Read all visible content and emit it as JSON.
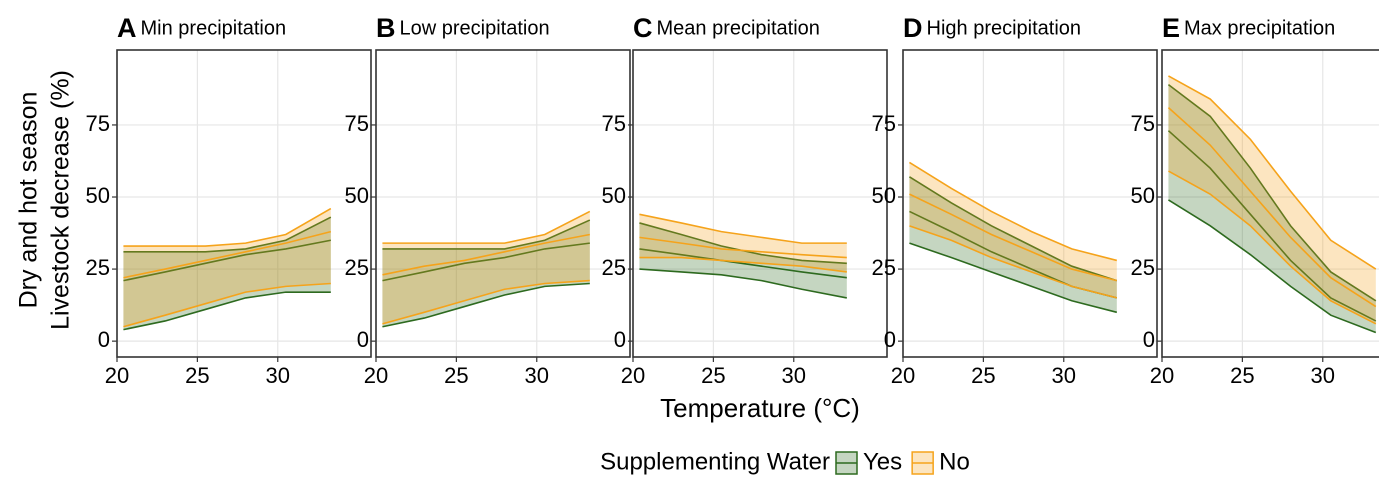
{
  "xlabel": "Temperature (°C)",
  "ylabel": [
    "Dry and hot season",
    "Livestock decrease (%)"
  ],
  "legend": {
    "title": "Supplementing Water",
    "series": [
      {
        "name": "Yes",
        "color": "#2d6a1f"
      },
      {
        "name": "No",
        "color": "#f5a31b"
      }
    ]
  },
  "chart_data": [
    {
      "type": "ribbon",
      "label": "A",
      "title": "Min precipitation",
      "x": [
        20.4,
        23,
        25.5,
        28,
        30.5,
        33.3
      ],
      "xlim": [
        20,
        35.8
      ],
      "xticks": [
        20,
        25,
        30
      ],
      "ylim": [
        -5.5,
        101
      ],
      "yticks": [
        0,
        25,
        50,
        75
      ],
      "grid": true,
      "bands": [
        {
          "lower": [
            4,
            7,
            11,
            15,
            17,
            17
          ],
          "mean": [
            21,
            24,
            27,
            30,
            32,
            35
          ],
          "upper": [
            31,
            31,
            31,
            32,
            35,
            43
          ]
        },
        {
          "lower": [
            5,
            9,
            13,
            17,
            19,
            20
          ],
          "mean": [
            22,
            25,
            28,
            31,
            34,
            38
          ],
          "upper": [
            33,
            33,
            33,
            34,
            37,
            46
          ]
        }
      ]
    },
    {
      "type": "ribbon",
      "label": "B",
      "title": "Low precipitation",
      "x": [
        20.4,
        23,
        25.5,
        28,
        30.5,
        33.3
      ],
      "xlim": [
        20,
        35.8
      ],
      "xticks": [
        20,
        25,
        30
      ],
      "ylim": [
        -5.5,
        101
      ],
      "yticks": [
        0,
        25,
        50,
        75
      ],
      "grid": true,
      "bands": [
        {
          "lower": [
            5,
            8,
            12,
            16,
            19,
            20
          ],
          "mean": [
            21,
            24,
            27,
            29,
            32,
            34
          ],
          "upper": [
            32,
            32,
            32,
            32,
            35,
            42
          ]
        },
        {
          "lower": [
            6,
            10,
            14,
            18,
            20,
            21
          ],
          "mean": [
            23,
            26,
            28,
            31,
            34,
            37
          ],
          "upper": [
            34,
            34,
            34,
            34,
            37,
            45
          ]
        }
      ]
    },
    {
      "type": "ribbon",
      "label": "C",
      "title": "Mean precipitation",
      "x": [
        20.4,
        23,
        25.5,
        28,
        30.5,
        33.3
      ],
      "xlim": [
        20,
        35.8
      ],
      "xticks": [
        20,
        25,
        30
      ],
      "ylim": [
        -5.5,
        101
      ],
      "yticks": [
        0,
        25,
        50,
        75
      ],
      "grid": true,
      "bands": [
        {
          "lower": [
            25,
            24,
            23,
            21,
            18,
            15
          ],
          "mean": [
            32,
            30,
            28,
            26,
            24,
            22
          ],
          "upper": [
            41,
            37,
            33,
            30,
            28,
            27
          ]
        },
        {
          "lower": [
            29,
            29,
            28,
            27,
            26,
            24
          ],
          "mean": [
            36,
            34,
            32,
            31,
            30,
            29
          ],
          "upper": [
            44,
            41,
            38,
            36,
            34,
            34
          ]
        }
      ]
    },
    {
      "type": "ribbon",
      "label": "D",
      "title": "High precipitation",
      "x": [
        20.4,
        23,
        25.5,
        28,
        30.5,
        33.3
      ],
      "xlim": [
        20,
        35.8
      ],
      "xticks": [
        20,
        25,
        30
      ],
      "ylim": [
        -5.5,
        101
      ],
      "yticks": [
        0,
        25,
        50,
        75
      ],
      "grid": true,
      "bands": [
        {
          "lower": [
            34,
            29,
            24,
            19,
            14,
            10
          ],
          "mean": [
            45,
            38,
            31,
            25,
            19,
            15
          ],
          "upper": [
            57,
            48,
            40,
            33,
            26,
            21
          ]
        },
        {
          "lower": [
            40,
            35,
            29,
            24,
            19,
            15
          ],
          "mean": [
            51,
            44,
            37,
            31,
            25,
            21
          ],
          "upper": [
            62,
            53,
            45,
            38,
            32,
            28
          ]
        }
      ]
    },
    {
      "type": "ribbon",
      "label": "E",
      "title": "Max precipitation",
      "x": [
        20.4,
        23,
        25.5,
        28,
        30.5,
        33.3
      ],
      "xlim": [
        20,
        35.8
      ],
      "xticks": [
        20,
        25,
        30
      ],
      "ylim": [
        -5.5,
        101
      ],
      "yticks": [
        0,
        25,
        50,
        75
      ],
      "grid": true,
      "bands": [
        {
          "lower": [
            49,
            40,
            30,
            19,
            9,
            3
          ],
          "mean": [
            73,
            60,
            44,
            28,
            15,
            7
          ],
          "upper": [
            89,
            78,
            60,
            40,
            24,
            14
          ]
        },
        {
          "lower": [
            59,
            51,
            40,
            26,
            14,
            6
          ],
          "mean": [
            81,
            68,
            52,
            36,
            22,
            12
          ],
          "upper": [
            92,
            84,
            70,
            52,
            35,
            25
          ]
        }
      ]
    }
  ]
}
